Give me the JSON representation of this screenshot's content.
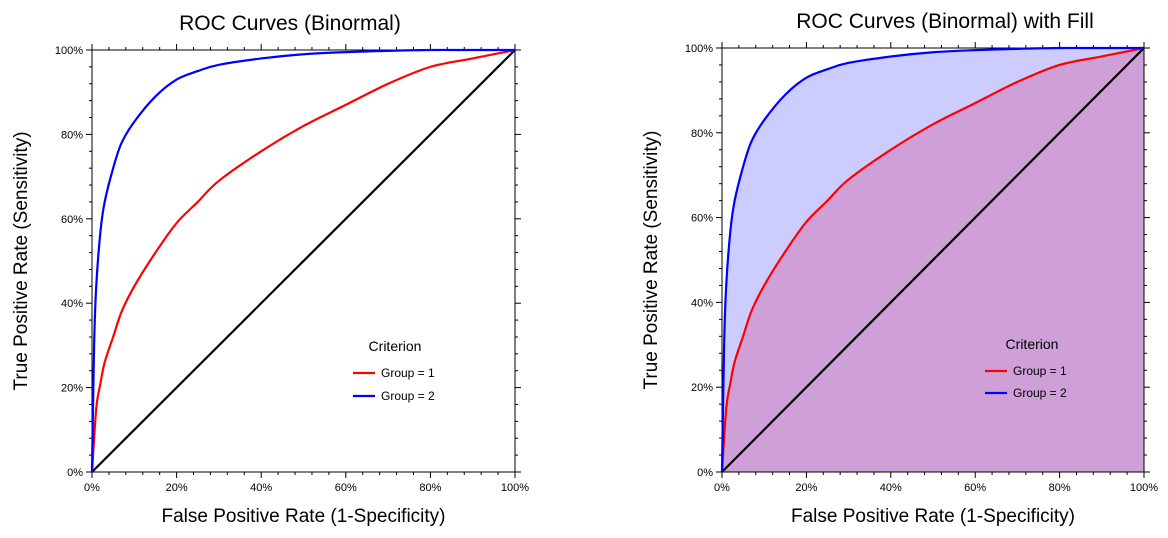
{
  "chart_data": [
    {
      "type": "line",
      "title": "ROC Curves (Binormal)",
      "xlabel": "False Positive Rate (1-Specificity)",
      "ylabel": "True Positive Rate (Sensitivity)",
      "xlim": [
        0,
        100
      ],
      "ylim": [
        0,
        100
      ],
      "x_ticks": [
        "0%",
        "20%",
        "40%",
        "60%",
        "80%",
        "100%"
      ],
      "y_ticks": [
        "0%",
        "20%",
        "40%",
        "60%",
        "80%",
        "100%"
      ],
      "grid": false,
      "fill": false,
      "legend": {
        "title": "Criterion",
        "placement": "bottom-right",
        "entries": [
          "Group = 1",
          "Group = 2"
        ]
      },
      "reference_line": {
        "x": [
          0,
          100
        ],
        "y": [
          0,
          100
        ],
        "color": "#000000"
      },
      "series": [
        {
          "name": "Group = 1",
          "color": "#ff0000",
          "x": [
            0,
            1,
            2,
            3,
            5,
            7,
            10,
            15,
            20,
            25,
            30,
            40,
            50,
            60,
            70,
            80,
            90,
            100
          ],
          "y": [
            0,
            15,
            21,
            26,
            32,
            38,
            44,
            52,
            59,
            64,
            69,
            76,
            82,
            87,
            92,
            96,
            98,
            100
          ]
        },
        {
          "name": "Group = 2",
          "color": "#0000ff",
          "x": [
            0,
            0.5,
            1,
            2,
            3,
            5,
            7,
            10,
            15,
            20,
            25,
            30,
            40,
            50,
            60,
            70,
            80,
            90,
            100
          ],
          "y": [
            0,
            30,
            44,
            57,
            64,
            72,
            78,
            83,
            89,
            93,
            95,
            96.5,
            98,
            99,
            99.5,
            99.8,
            100,
            100,
            100
          ]
        }
      ]
    },
    {
      "type": "area",
      "title": "ROC Curves (Binormal) with Fill",
      "xlabel": "False Positive Rate (1-Specificity)",
      "ylabel": "True Positive Rate (Sensitivity)",
      "xlim": [
        0,
        100
      ],
      "ylim": [
        0,
        100
      ],
      "x_ticks": [
        "0%",
        "20%",
        "40%",
        "60%",
        "80%",
        "100%"
      ],
      "y_ticks": [
        "0%",
        "20%",
        "40%",
        "60%",
        "80%",
        "100%"
      ],
      "grid": false,
      "fill": true,
      "fill_colors": [
        "#cfa0d8",
        "#ccccff"
      ],
      "legend": {
        "title": "Criterion",
        "placement": "bottom-right",
        "entries": [
          "Group = 1",
          "Group = 2"
        ]
      },
      "reference_line": {
        "x": [
          0,
          100
        ],
        "y": [
          0,
          100
        ],
        "color": "#000000"
      },
      "series": [
        {
          "name": "Group = 1",
          "color": "#ff0000",
          "x": [
            0,
            1,
            2,
            3,
            5,
            7,
            10,
            15,
            20,
            25,
            30,
            40,
            50,
            60,
            70,
            80,
            90,
            100
          ],
          "y": [
            0,
            15,
            21,
            26,
            32,
            38,
            44,
            52,
            59,
            64,
            69,
            76,
            82,
            87,
            92,
            96,
            98,
            100
          ]
        },
        {
          "name": "Group = 2",
          "color": "#0000ff",
          "x": [
            0,
            0.5,
            1,
            2,
            3,
            5,
            7,
            10,
            15,
            20,
            25,
            30,
            40,
            50,
            60,
            70,
            80,
            90,
            100
          ],
          "y": [
            0,
            30,
            44,
            57,
            64,
            72,
            78,
            83,
            89,
            93,
            95,
            96.5,
            98,
            99,
            99.5,
            99.8,
            100,
            100,
            100
          ]
        }
      ]
    }
  ]
}
